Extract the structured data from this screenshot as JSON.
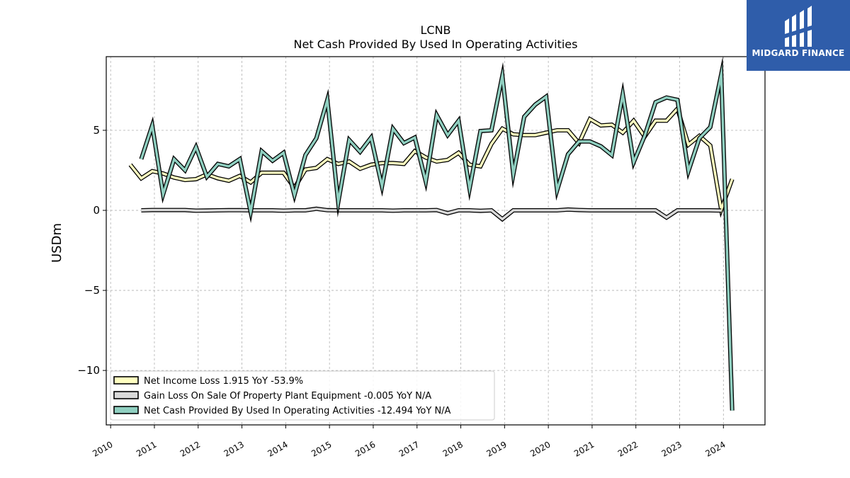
{
  "header": {
    "title": "LCNB",
    "subtitle": "Net Cash Provided By Used In Operating Activities"
  },
  "logo": {
    "text": "MIDGARD FINANCE",
    "color": "#2f5daa"
  },
  "chart_data": {
    "type": "line",
    "ylabel": "USDm",
    "xlim": [
      2009.9,
      2024.95
    ],
    "ylim": [
      -13.4,
      9.6
    ],
    "yticks": [
      -10,
      -5,
      0,
      5
    ],
    "ytick_labels": [
      "−10",
      "−5",
      "0",
      "5"
    ],
    "xticks": [
      2010,
      2011,
      2012,
      2013,
      2014,
      2015,
      2016,
      2017,
      2018,
      2019,
      2020,
      2021,
      2022,
      2023,
      2024
    ],
    "xtick_labels": [
      "2010",
      "2011",
      "2012",
      "2013",
      "2014",
      "2015",
      "2016",
      "2017",
      "2018",
      "2019",
      "2020",
      "2021",
      "2022",
      "2023",
      "2024"
    ],
    "grid": true,
    "legend_position": "lower-left",
    "series": [
      {
        "name": "Net Income Loss",
        "legend": "Net Income Loss  1.915 YoY -53.9%",
        "color": "#ffffc0",
        "points": [
          [
            2010.45,
            2.85
          ],
          [
            2010.7,
            2.0
          ],
          [
            2010.95,
            2.45
          ],
          [
            2011.2,
            2.3
          ],
          [
            2011.45,
            2.05
          ],
          [
            2011.7,
            1.9
          ],
          [
            2011.95,
            1.95
          ],
          [
            2012.2,
            2.25
          ],
          [
            2012.45,
            2.0
          ],
          [
            2012.7,
            1.85
          ],
          [
            2012.95,
            2.15
          ],
          [
            2013.2,
            1.75
          ],
          [
            2013.45,
            2.35
          ],
          [
            2013.7,
            2.35
          ],
          [
            2013.95,
            2.35
          ],
          [
            2014.2,
            1.4
          ],
          [
            2014.45,
            2.55
          ],
          [
            2014.7,
            2.65
          ],
          [
            2014.95,
            3.2
          ],
          [
            2015.2,
            2.9
          ],
          [
            2015.45,
            3.05
          ],
          [
            2015.7,
            2.6
          ],
          [
            2015.95,
            2.85
          ],
          [
            2016.2,
            2.95
          ],
          [
            2016.45,
            2.95
          ],
          [
            2016.7,
            2.9
          ],
          [
            2016.95,
            3.7
          ],
          [
            2017.2,
            3.3
          ],
          [
            2017.45,
            3.05
          ],
          [
            2017.7,
            3.15
          ],
          [
            2017.95,
            3.6
          ],
          [
            2018.2,
            2.85
          ],
          [
            2018.45,
            2.75
          ],
          [
            2018.7,
            4.15
          ],
          [
            2018.95,
            5.1
          ],
          [
            2019.2,
            4.75
          ],
          [
            2019.45,
            4.7
          ],
          [
            2019.7,
            4.7
          ],
          [
            2019.95,
            4.85
          ],
          [
            2020.2,
            5.0
          ],
          [
            2020.45,
            5.0
          ],
          [
            2020.7,
            4.2
          ],
          [
            2020.95,
            5.7
          ],
          [
            2021.2,
            5.3
          ],
          [
            2021.45,
            5.35
          ],
          [
            2021.7,
            4.85
          ],
          [
            2021.95,
            5.6
          ],
          [
            2022.2,
            4.6
          ],
          [
            2022.45,
            5.6
          ],
          [
            2022.7,
            5.6
          ],
          [
            2022.95,
            6.35
          ],
          [
            2023.2,
            4.1
          ],
          [
            2023.45,
            4.65
          ],
          [
            2023.7,
            4.05
          ],
          [
            2023.95,
            0.05
          ],
          [
            2024.2,
            1.95
          ]
        ]
      },
      {
        "name": "Gain Loss On Sale Of Property Plant Equipment",
        "legend": "Gain Loss On Sale Of Property Plant Equipment  -0.005 YoY N/A",
        "color": "#d9d9d9",
        "points": [
          [
            2010.7,
            0.0
          ],
          [
            2010.95,
            0.02
          ],
          [
            2011.2,
            0.02
          ],
          [
            2011.45,
            0.02
          ],
          [
            2011.7,
            0.02
          ],
          [
            2011.95,
            -0.02
          ],
          [
            2012.2,
            -0.01
          ],
          [
            2012.45,
            0.0
          ],
          [
            2012.7,
            0.01
          ],
          [
            2012.95,
            0.01
          ],
          [
            2013.2,
            0.0
          ],
          [
            2013.45,
            0.0
          ],
          [
            2013.7,
            0.0
          ],
          [
            2013.95,
            -0.02
          ],
          [
            2014.2,
            0.0
          ],
          [
            2014.45,
            0.0
          ],
          [
            2014.7,
            0.1
          ],
          [
            2014.95,
            0.01
          ],
          [
            2015.2,
            0.0
          ],
          [
            2015.45,
            0.0
          ],
          [
            2015.7,
            0.0
          ],
          [
            2015.95,
            0.0
          ],
          [
            2016.2,
            0.0
          ],
          [
            2016.45,
            -0.02
          ],
          [
            2016.7,
            0.0
          ],
          [
            2016.95,
            0.0
          ],
          [
            2017.2,
            0.0
          ],
          [
            2017.45,
            0.02
          ],
          [
            2017.7,
            -0.18
          ],
          [
            2017.95,
            0.0
          ],
          [
            2018.2,
            0.0
          ],
          [
            2018.45,
            -0.03
          ],
          [
            2018.7,
            0.0
          ],
          [
            2018.95,
            -0.55
          ],
          [
            2019.2,
            0.0
          ],
          [
            2019.45,
            0.0
          ],
          [
            2019.7,
            0.0
          ],
          [
            2019.95,
            0.0
          ],
          [
            2020.2,
            0.0
          ],
          [
            2020.45,
            0.05
          ],
          [
            2020.7,
            0.02
          ],
          [
            2020.95,
            0.0
          ],
          [
            2021.2,
            0.0
          ],
          [
            2021.45,
            0.0
          ],
          [
            2021.7,
            0.0
          ],
          [
            2021.95,
            0.0
          ],
          [
            2022.2,
            0.0
          ],
          [
            2022.45,
            0.0
          ],
          [
            2022.7,
            -0.45
          ],
          [
            2022.95,
            0.0
          ],
          [
            2023.2,
            0.0
          ],
          [
            2023.45,
            0.0
          ],
          [
            2023.7,
            0.0
          ],
          [
            2023.95,
            -0.01
          ]
        ]
      },
      {
        "name": "Net Cash Provided By Used In Operating Activities",
        "legend": "Net Cash Provided By Used In Operating Activities  -12.494 YoY N/A",
        "color": "#8fcfc0",
        "points": [
          [
            2010.7,
            3.2
          ],
          [
            2010.95,
            5.3
          ],
          [
            2011.2,
            1.0
          ],
          [
            2011.45,
            3.2
          ],
          [
            2011.7,
            2.5
          ],
          [
            2011.95,
            3.95
          ],
          [
            2012.2,
            2.1
          ],
          [
            2012.45,
            2.9
          ],
          [
            2012.7,
            2.75
          ],
          [
            2012.95,
            3.2
          ],
          [
            2013.2,
            -0.1
          ],
          [
            2013.45,
            3.7
          ],
          [
            2013.7,
            3.1
          ],
          [
            2013.95,
            3.6
          ],
          [
            2014.2,
            0.95
          ],
          [
            2014.45,
            3.45
          ],
          [
            2014.7,
            4.5
          ],
          [
            2014.95,
            6.9
          ],
          [
            2015.2,
            0.5
          ],
          [
            2015.45,
            4.4
          ],
          [
            2015.7,
            3.65
          ],
          [
            2015.95,
            4.55
          ],
          [
            2016.2,
            1.5
          ],
          [
            2016.45,
            5.1
          ],
          [
            2016.7,
            4.2
          ],
          [
            2016.95,
            4.55
          ],
          [
            2017.2,
            1.8
          ],
          [
            2017.45,
            5.95
          ],
          [
            2017.7,
            4.7
          ],
          [
            2017.95,
            5.6
          ],
          [
            2018.2,
            1.35
          ],
          [
            2018.45,
            4.95
          ],
          [
            2018.7,
            5.0
          ],
          [
            2018.95,
            8.4
          ],
          [
            2019.2,
            2.25
          ],
          [
            2019.45,
            5.85
          ],
          [
            2019.7,
            6.6
          ],
          [
            2019.95,
            7.1
          ],
          [
            2020.2,
            1.25
          ],
          [
            2020.45,
            3.5
          ],
          [
            2020.7,
            4.3
          ],
          [
            2020.95,
            4.3
          ],
          [
            2021.2,
            4.0
          ],
          [
            2021.45,
            3.45
          ],
          [
            2021.7,
            7.25
          ],
          [
            2021.95,
            3.0
          ],
          [
            2022.2,
            4.65
          ],
          [
            2022.45,
            6.75
          ],
          [
            2022.7,
            7.05
          ],
          [
            2022.95,
            6.9
          ],
          [
            2023.2,
            2.45
          ],
          [
            2023.45,
            4.5
          ],
          [
            2023.7,
            5.2
          ],
          [
            2023.95,
            8.5
          ],
          [
            2024.2,
            -12.5
          ]
        ]
      }
    ]
  }
}
